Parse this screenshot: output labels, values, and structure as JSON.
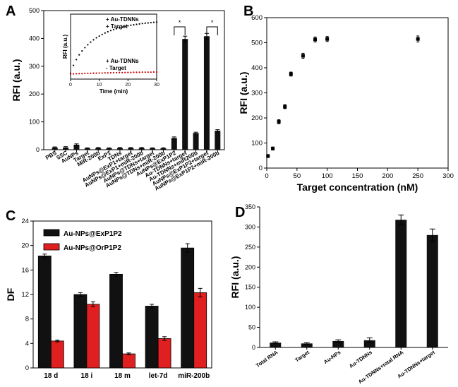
{
  "chart_data": [
    {
      "panel": "A",
      "type": "bar",
      "ylabel": "RFI (a.u.)",
      "ylim": [
        0,
        500
      ],
      "yticks": [
        0,
        100,
        200,
        300,
        400,
        500
      ],
      "categories": [
        "PBS",
        "SSC",
        "AuNPs",
        "Target",
        "MiR-200b",
        "ExP1",
        "TDNs",
        "AuNPs@ExP1+target",
        "AuNPs@ExP1+miR-200b",
        "AuNPs@TDNs+target",
        "AuNPs@TDNs+miR-200b",
        "AuNPs@ExP1P2",
        "Au-TDNNs+target",
        "Au-TDNNs+miR200b",
        "AuNPs@ExP1P2+target",
        "AuNPs@ExP1P2+miR-200b"
      ],
      "values": [
        8,
        8,
        18,
        5,
        6,
        5,
        6,
        6,
        6,
        5,
        5,
        42,
        398,
        60,
        408,
        68
      ],
      "errors": [
        2,
        3,
        3,
        2,
        2,
        2,
        2,
        2,
        2,
        2,
        2,
        4,
        10,
        3,
        10,
        4
      ],
      "significance": [
        "*",
        "*"
      ],
      "inset": {
        "type": "scatter",
        "xlabel": "Time (min)",
        "ylabel": "RFI (a.u.)",
        "xlim": [
          0,
          30
        ],
        "xticks": [
          0,
          10,
          20,
          30
        ],
        "ylim": [
          0,
          450
        ],
        "legend_upper": [
          "+ Au-TDNNs",
          "+ Target"
        ],
        "legend_lower": [
          "+ Au-TDNNs",
          "- Target"
        ],
        "series": [
          {
            "name": "+ Au-TDNNs + Target",
            "color": "#000000",
            "x": [
              0,
              1,
              2,
              3,
              4,
              5,
              6,
              7,
              8,
              9,
              10,
              11,
              12,
              13,
              14,
              15,
              16,
              17,
              18,
              19,
              20,
              21,
              22,
              23,
              24,
              25,
              26,
              27,
              28,
              29,
              30
            ],
            "y": [
              40,
              95,
              135,
              168,
              195,
              218,
              238,
              256,
              272,
              286,
              298,
              309,
              319,
              328,
              336,
              343,
              349,
              355,
              360,
              365,
              369,
              373,
              376,
              379,
              382,
              385,
              387,
              389,
              391,
              393,
              395
            ]
          },
          {
            "name": "+ Au-TDNNs - Target",
            "color": "#cc0000",
            "x": [
              0,
              1,
              2,
              3,
              4,
              5,
              6,
              7,
              8,
              9,
              10,
              11,
              12,
              13,
              14,
              15,
              16,
              17,
              18,
              19,
              20,
              21,
              22,
              23,
              24,
              25,
              26,
              27,
              28,
              29,
              30
            ],
            "y": [
              35,
              36,
              37,
              38,
              38,
              39,
              40,
              40,
              41,
              41,
              42,
              42,
              43,
              43,
              44,
              44,
              45,
              45,
              45,
              46,
              46,
              46,
              47,
              47,
              47,
              48,
              48,
              48,
              48,
              49,
              49
            ]
          }
        ]
      }
    },
    {
      "panel": "B",
      "type": "scatter",
      "xlabel": "Target concentration (nM)",
      "ylabel": "RFI (a.u.)",
      "xlim": [
        0,
        300
      ],
      "xticks": [
        0,
        50,
        100,
        150,
        200,
        250,
        300
      ],
      "ylim": [
        0,
        600
      ],
      "yticks": [
        0,
        100,
        200,
        300,
        400,
        500,
        600
      ],
      "x": [
        2,
        10,
        20,
        30,
        40,
        60,
        80,
        100,
        250
      ],
      "y": [
        48,
        78,
        185,
        245,
        375,
        448,
        513,
        515,
        515
      ],
      "errors": [
        6,
        6,
        8,
        8,
        8,
        10,
        10,
        10,
        12
      ]
    },
    {
      "panel": "C",
      "type": "bar",
      "ylabel": "DF",
      "ylim": [
        0,
        24
      ],
      "yticks": [
        0,
        4,
        8,
        12,
        16,
        20,
        24
      ],
      "categories": [
        "18 d",
        "18 i",
        "18 m",
        "let-7d",
        "miR-200b"
      ],
      "series": [
        {
          "name": "Au-NPs@ExP1P2",
          "color": "#111111",
          "values": [
            18.3,
            12.0,
            15.3,
            10.1,
            19.6
          ],
          "errors": [
            0.3,
            0.3,
            0.3,
            0.3,
            0.7
          ]
        },
        {
          "name": "Au-NPs@OrP1P2",
          "color": "#e02020",
          "values": [
            4.4,
            10.4,
            2.3,
            4.8,
            12.3
          ],
          "errors": [
            0.15,
            0.4,
            0.15,
            0.3,
            0.7
          ]
        }
      ]
    },
    {
      "panel": "D",
      "type": "bar",
      "ylabel": "RFI (a.u.)",
      "ylim": [
        0,
        350
      ],
      "yticks": [
        0,
        50,
        100,
        150,
        200,
        250,
        300,
        350
      ],
      "categories": [
        "Total RNA",
        "Target",
        "Au-NPs",
        "Au-TDNNs",
        "Au-TDNNs+total RNA",
        "Au-TDNNs+target"
      ],
      "values": [
        12,
        10,
        16,
        18,
        318,
        280
      ],
      "errors": [
        2,
        2,
        3,
        6,
        12,
        15
      ]
    }
  ],
  "labels": {
    "A": "A",
    "B": "B",
    "C": "C",
    "D": "D"
  },
  "colors": {
    "bar": "#111111",
    "red": "#e02020",
    "inset_red": "#cc0000"
  }
}
